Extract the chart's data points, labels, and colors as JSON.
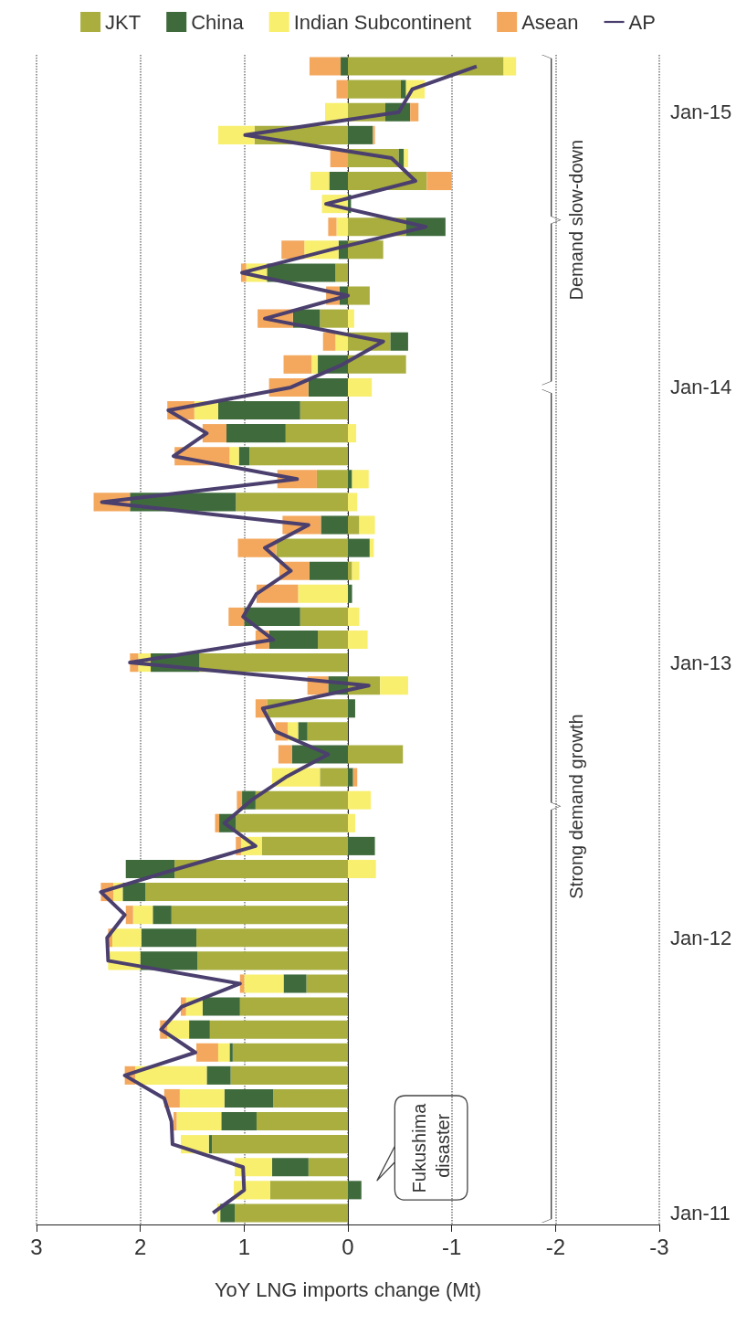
{
  "chart_data": {
    "type": "bar",
    "stacked": true,
    "orientation": "horizontal",
    "xlabel": "YoY LNG imports change (Mt)",
    "categories": [
      null,
      null,
      "Jan-15",
      null,
      null,
      null,
      null,
      null,
      null,
      null,
      null,
      null,
      null,
      null,
      "Jan-14",
      null,
      null,
      null,
      null,
      null,
      null,
      null,
      null,
      null,
      null,
      null,
      "Jan-13",
      null,
      null,
      null,
      null,
      null,
      null,
      null,
      null,
      null,
      null,
      null,
      "Jan-12",
      null,
      null,
      null,
      null,
      null,
      null,
      null,
      null,
      null,
      null,
      null,
      "Jan-11"
    ],
    "series": [
      {
        "name": "JKT",
        "color": "#a9ae3f",
        "values": [
          -1.5,
          -0.51,
          -0.36,
          0.9,
          -0.49,
          -0.76,
          0,
          -0.56,
          -0.34,
          0.12,
          -0.21,
          0.27,
          -0.41,
          -0.56,
          0,
          0.46,
          0.6,
          0.95,
          0.3,
          1.08,
          -0.11,
          0.69,
          -0.04,
          0,
          0.46,
          0.29,
          1.43,
          -0.31,
          0.78,
          0.39,
          -0.53,
          0.27,
          0.89,
          1.08,
          0.83,
          1.67,
          1.95,
          1.7,
          1.46,
          1.45,
          0.4,
          1.04,
          1.33,
          1.11,
          1.13,
          0.72,
          0.88,
          1.31,
          0.38,
          0.75,
          1.09
        ]
      },
      {
        "name": "China",
        "color": "#3f6b3c",
        "values": [
          0.07,
          -0.05,
          -0.24,
          -0.24,
          -0.05,
          0.18,
          -0.03,
          -0.38,
          0.09,
          0.66,
          0.08,
          0.26,
          -0.17,
          0.29,
          0.38,
          0.79,
          0.57,
          0.1,
          -0.04,
          1.02,
          0.26,
          -0.21,
          0.37,
          -0.04,
          0.54,
          0.47,
          0.47,
          0.19,
          -0.07,
          0.09,
          0.54,
          -0.05,
          0.13,
          0.16,
          -0.26,
          0.47,
          0.22,
          0.18,
          0.53,
          0.55,
          0.22,
          0.36,
          0.2,
          0.03,
          0.23,
          0.47,
          0.34,
          0.03,
          0.35,
          -0.13,
          0.14
        ]
      },
      {
        "name": "Indian Subcontinent",
        "color": "#f8ef6e",
        "values": [
          -0.12,
          -0.18,
          0.22,
          0.35,
          -0.04,
          0.18,
          0.25,
          0.11,
          0.33,
          0.2,
          0,
          -0.06,
          0.12,
          0.06,
          -0.23,
          0.23,
          -0.08,
          0.09,
          -0.16,
          -0.09,
          -0.15,
          -0.04,
          -0.07,
          0.48,
          -0.11,
          -0.19,
          0.12,
          -0.27,
          0,
          0.1,
          0,
          0.46,
          -0.22,
          -0.07,
          0.2,
          -0.27,
          0.09,
          0.19,
          0.28,
          0.31,
          0.38,
          0.16,
          0.21,
          0.11,
          0.69,
          0.43,
          0.43,
          0.27,
          0.36,
          0.35,
          0.03
        ]
      },
      {
        "name": "Asean",
        "color": "#f3a85e",
        "values": [
          0.3,
          0.11,
          -0.08,
          -0.02,
          0.17,
          -0.24,
          0,
          0.08,
          0.22,
          0.05,
          0.13,
          0.34,
          0.12,
          0.27,
          0.38,
          0.26,
          0.23,
          0.53,
          0.38,
          0.35,
          0.37,
          0.37,
          0.29,
          0.4,
          0.15,
          0.13,
          0.08,
          0.2,
          0.11,
          0.12,
          0.13,
          -0.04,
          0.05,
          0.04,
          0.05,
          0,
          0.12,
          0.07,
          0.04,
          0,
          0.04,
          0.05,
          0.07,
          0.21,
          0.1,
          0.15,
          0.03,
          0,
          0,
          0,
          0
        ]
      },
      {
        "name": "AP",
        "type": "line",
        "color": "#4b3f6e",
        "values": [
          -1.24,
          -0.62,
          -0.49,
          0.99,
          -0.42,
          -0.65,
          0.21,
          -0.75,
          0.17,
          1.02,
          0.0,
          0.8,
          -0.34,
          0.05,
          0.55,
          1.73,
          1.36,
          1.68,
          0.49,
          2.37,
          0.38,
          0.8,
          0.55,
          0.88,
          1.01,
          0.72,
          2.1,
          -0.2,
          0.82,
          0.7,
          0.19,
          0.6,
          0.93,
          1.19,
          0.89,
          1.65,
          2.38,
          2.15,
          2.32,
          2.31,
          1.04,
          1.6,
          1.8,
          1.47,
          2.15,
          1.77,
          1.7,
          1.69,
          1.01,
          1.0,
          1.3
        ]
      }
    ],
    "xlim": [
      3,
      -3
    ],
    "xticks": [
      3,
      2,
      1,
      0,
      -1,
      -2,
      -3
    ],
    "grid": "x",
    "legend": "top",
    "marker": "none",
    "annotations": [
      "Fukushima disaster",
      "Strong demand growth",
      "Demand slow-down"
    ]
  }
}
